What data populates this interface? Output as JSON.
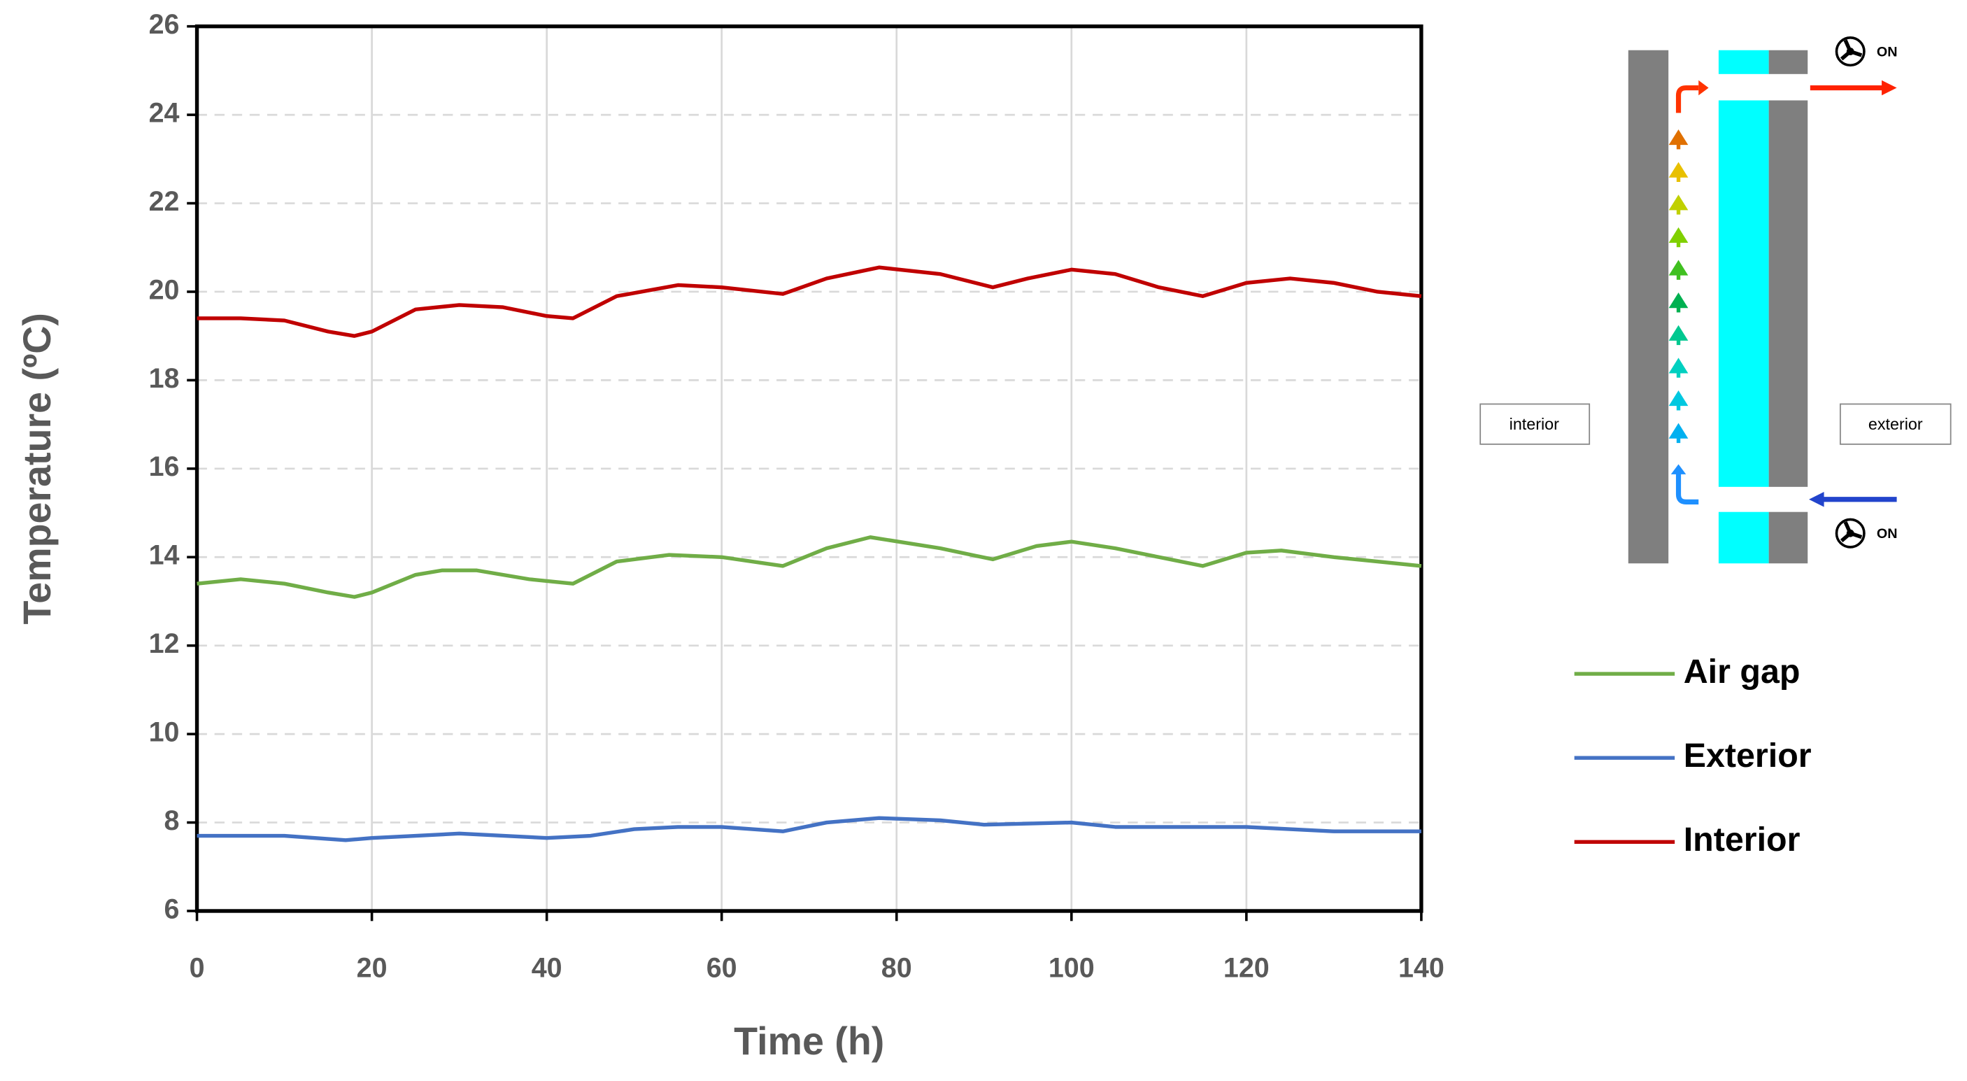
{
  "chart_data": {
    "type": "line",
    "x_label": "Time (h)",
    "y_label": "Temperature (ºC)",
    "xlim": [
      0,
      140
    ],
    "xticks": [
      0,
      20,
      40,
      60,
      80,
      100,
      120,
      140
    ],
    "ylim": [
      6,
      26
    ],
    "yticks": [
      6,
      8,
      10,
      12,
      14,
      16,
      18,
      20,
      22,
      24,
      26
    ],
    "grid": true,
    "legend": "right",
    "series": [
      {
        "name": "Air gap",
        "color": "#70ad47",
        "x": [
          0,
          5,
          10,
          15,
          18,
          20,
          25,
          28,
          32,
          38,
          43,
          48,
          54,
          60,
          67,
          72,
          77,
          85,
          91,
          96,
          100,
          105,
          110,
          115,
          120,
          124,
          130,
          135,
          140
        ],
        "values": [
          13.4,
          13.5,
          13.4,
          13.2,
          13.1,
          13.2,
          13.6,
          13.7,
          13.7,
          13.5,
          13.4,
          13.9,
          14.05,
          14.0,
          13.8,
          14.2,
          14.45,
          14.2,
          13.95,
          14.25,
          14.35,
          14.2,
          14.0,
          13.8,
          14.1,
          14.15,
          14.0,
          13.9,
          13.8
        ]
      },
      {
        "name": "Exterior",
        "color": "#4472c4",
        "x": [
          0,
          10,
          17,
          20,
          25,
          30,
          40,
          45,
          50,
          55,
          60,
          67,
          72,
          78,
          85,
          90,
          100,
          105,
          115,
          120,
          130,
          140
        ],
        "values": [
          7.7,
          7.7,
          7.6,
          7.65,
          7.7,
          7.75,
          7.65,
          7.7,
          7.85,
          7.9,
          7.9,
          7.8,
          8.0,
          8.1,
          8.05,
          7.95,
          8.0,
          7.9,
          7.9,
          7.9,
          7.8,
          7.8
        ]
      },
      {
        "name": "Interior",
        "color": "#c00000",
        "x": [
          0,
          5,
          10,
          15,
          18,
          20,
          25,
          30,
          35,
          40,
          43,
          48,
          55,
          60,
          67,
          72,
          78,
          85,
          91,
          95,
          100,
          105,
          110,
          115,
          120,
          125,
          130,
          135,
          140
        ],
        "values": [
          19.4,
          19.4,
          19.35,
          19.1,
          19.0,
          19.1,
          19.6,
          19.7,
          19.65,
          19.45,
          19.4,
          19.9,
          20.15,
          20.1,
          19.95,
          20.3,
          20.55,
          20.4,
          20.1,
          20.3,
          20.5,
          20.4,
          20.1,
          19.9,
          20.2,
          20.3,
          20.2,
          20.0,
          19.9
        ]
      }
    ]
  },
  "diagram": {
    "interior_label": "interior",
    "exterior_label": "exterior",
    "fan_labels": [
      "ON",
      "ON"
    ]
  }
}
